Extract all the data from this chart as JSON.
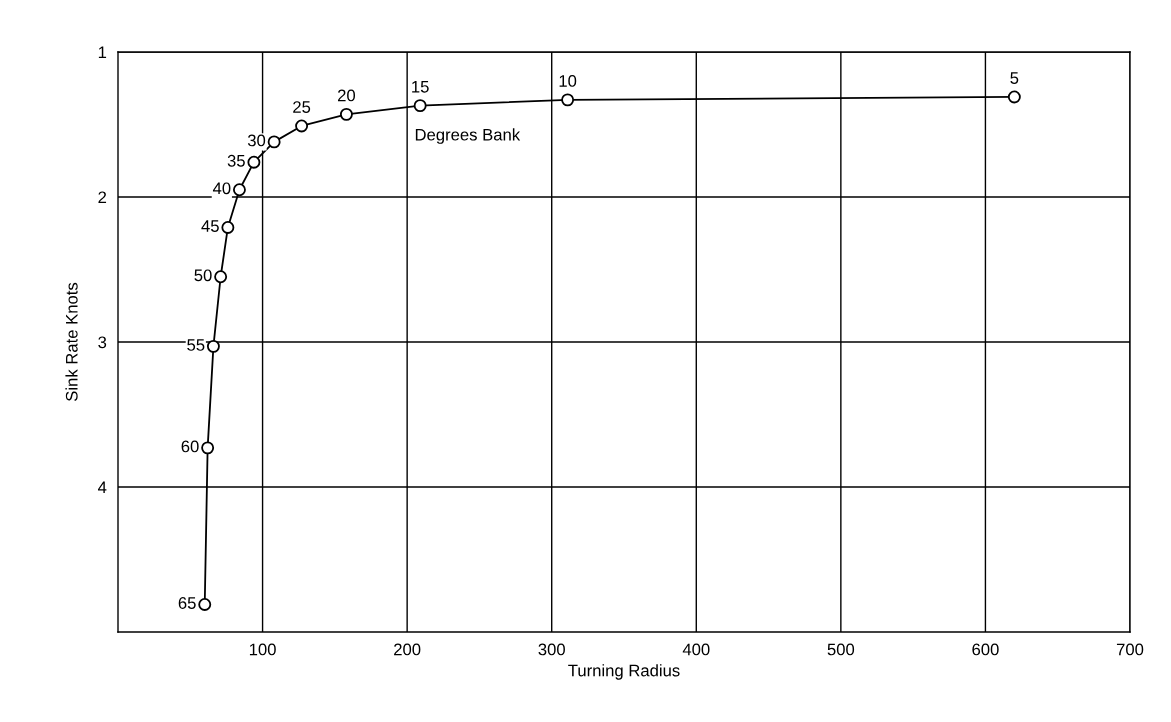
{
  "chart_data": {
    "type": "line",
    "xlabel": "Turning Radius",
    "ylabel": "Sink Rate Knots",
    "x": [
      620,
      311,
      209,
      158,
      127,
      108,
      94,
      84,
      76,
      71,
      66,
      62,
      60
    ],
    "series": [
      {
        "color": "#000000",
        "values": [
          1.31,
          1.33,
          1.37,
          1.43,
          1.51,
          1.62,
          1.76,
          1.95,
          2.21,
          2.55,
          3.03,
          3.73,
          4.81
        ]
      }
    ],
    "xlim": [
      0,
      700
    ],
    "xticks": [
      100,
      200,
      300,
      400,
      500,
      600,
      700
    ],
    "ylim": [
      5,
      1
    ],
    "yticks": [
      1,
      2,
      3,
      4
    ],
    "grid": true,
    "marker": "circle",
    "line_style": "solid",
    "annotations": [
      {
        "text": "5",
        "x": 620,
        "y": 1.31
      },
      {
        "text": "10",
        "x": 311,
        "y": 1.33
      },
      {
        "text": "15",
        "x": 209,
        "y": 1.37
      },
      {
        "text": "20",
        "x": 158,
        "y": 1.43
      },
      {
        "text": "25",
        "x": 127,
        "y": 1.51
      },
      {
        "text": "30",
        "x": 108,
        "y": 1.62
      },
      {
        "text": "35",
        "x": 94,
        "y": 1.76
      },
      {
        "text": "40",
        "x": 84,
        "y": 1.95
      },
      {
        "text": "45",
        "x": 76,
        "y": 2.21
      },
      {
        "text": "50",
        "x": 71,
        "y": 2.55
      },
      {
        "text": "55",
        "x": 66,
        "y": 3.03
      },
      {
        "text": "60",
        "x": 62,
        "y": 3.73
      },
      {
        "text": "65",
        "x": 60,
        "y": 4.81
      },
      "Degrees Bank"
    ]
  }
}
